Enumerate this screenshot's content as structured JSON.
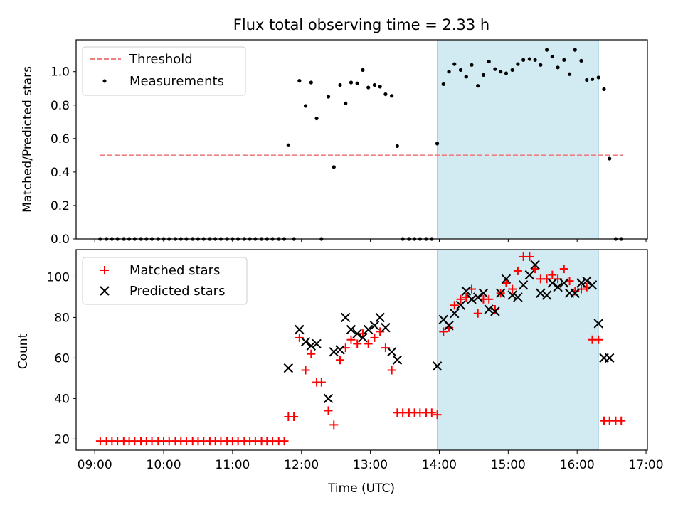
{
  "title": "Flux total observing time = 2.33 h",
  "colors": {
    "threshold": "#f08080",
    "measurements": "#000000",
    "matched": "#ff0000",
    "predicted": "#000000",
    "shade": "#add8e6"
  },
  "chart_data": [
    {
      "type": "scatter",
      "ylabel": "Matched/Predicted stars",
      "ylim": [
        0,
        1.19
      ],
      "yticks": [
        "0.0",
        "0.2",
        "0.4",
        "0.6",
        "0.8",
        "1.0"
      ],
      "xlim": [
        8.73,
        17.02
      ],
      "shaded_range": [
        13.97,
        16.31
      ],
      "legend_position": "upper-left",
      "series": [
        {
          "name": "Threshold",
          "kind": "line-dashed",
          "x": [
            9.08,
            16.67
          ],
          "y": [
            0.5,
            0.5
          ]
        },
        {
          "name": "Measurements",
          "kind": "dot",
          "x": [
            9.08,
            9.17,
            9.25,
            9.33,
            9.42,
            9.5,
            9.58,
            9.67,
            9.75,
            9.83,
            9.92,
            10.0,
            10.08,
            10.17,
            10.25,
            10.33,
            10.42,
            10.5,
            10.58,
            10.67,
            10.75,
            10.83,
            10.92,
            11.0,
            11.08,
            11.17,
            11.25,
            11.33,
            11.42,
            11.5,
            11.58,
            11.67,
            11.75,
            11.81,
            11.89,
            11.97,
            12.06,
            12.14,
            12.22,
            12.29,
            12.39,
            12.47,
            12.56,
            12.64,
            12.72,
            12.81,
            12.89,
            12.97,
            13.06,
            13.14,
            13.22,
            13.31,
            13.39,
            13.47,
            13.56,
            13.64,
            13.72,
            13.81,
            13.89,
            13.97,
            14.06,
            14.14,
            14.22,
            14.31,
            14.39,
            14.47,
            14.56,
            14.64,
            14.72,
            14.81,
            14.89,
            14.97,
            15.06,
            15.14,
            15.22,
            15.31,
            15.39,
            15.47,
            15.56,
            15.64,
            15.72,
            15.81,
            15.89,
            15.97,
            16.06,
            16.14,
            16.22,
            16.31,
            16.39,
            16.47,
            16.56,
            16.64
          ],
          "y": [
            0,
            0,
            0,
            0,
            0,
            0,
            0,
            0,
            0,
            0,
            0,
            0,
            0,
            0,
            0,
            0,
            0,
            0,
            0,
            0,
            0,
            0,
            0,
            0,
            0,
            0,
            0,
            0,
            0,
            0,
            0,
            0,
            0,
            0.56,
            0,
            0.945,
            0.795,
            0.935,
            0.72,
            0,
            0.85,
            0.43,
            0.92,
            0.81,
            0.935,
            0.93,
            1.01,
            0.905,
            0.92,
            0.91,
            0.865,
            0.855,
            0.555,
            0,
            0,
            0,
            0,
            0,
            0,
            0.57,
            0.925,
            1.0,
            1.045,
            1.01,
            0.97,
            1.04,
            0.915,
            0.98,
            1.06,
            1.015,
            1.0,
            0.99,
            1.01,
            1.045,
            1.07,
            1.075,
            1.07,
            1.04,
            1.13,
            1.09,
            1.025,
            1.07,
            0.985,
            1.13,
            1.065,
            0.95,
            0.955,
            0.965,
            0.895,
            0.48,
            0,
            0
          ]
        }
      ]
    },
    {
      "type": "scatter",
      "xlabel": "Time (UTC)",
      "ylabel": "Count",
      "ylim": [
        14.5,
        113.5
      ],
      "yticks": [
        "20",
        "40",
        "60",
        "80",
        "100"
      ],
      "xlim": [
        8.73,
        17.02
      ],
      "xticks": [
        "09:00",
        "10:00",
        "11:00",
        "12:00",
        "13:00",
        "14:00",
        "15:00",
        "16:00",
        "17:00"
      ],
      "shaded_range": [
        13.97,
        16.31
      ],
      "legend_position": "upper-left",
      "series": [
        {
          "name": "Matched stars",
          "kind": "plus",
          "x": [
            9.08,
            9.17,
            9.25,
            9.33,
            9.42,
            9.5,
            9.58,
            9.67,
            9.75,
            9.83,
            9.92,
            10.0,
            10.08,
            10.17,
            10.25,
            10.33,
            10.42,
            10.5,
            10.58,
            10.67,
            10.75,
            10.83,
            10.92,
            11.0,
            11.08,
            11.17,
            11.25,
            11.33,
            11.42,
            11.5,
            11.58,
            11.67,
            11.75,
            11.81,
            11.89,
            11.97,
            12.06,
            12.14,
            12.22,
            12.29,
            12.39,
            12.47,
            12.56,
            12.64,
            12.72,
            12.81,
            12.89,
            12.97,
            13.06,
            13.14,
            13.22,
            13.31,
            13.39,
            13.47,
            13.56,
            13.64,
            13.72,
            13.81,
            13.89,
            13.97,
            14.06,
            14.14,
            14.22,
            14.31,
            14.39,
            14.47,
            14.56,
            14.64,
            14.72,
            14.81,
            14.89,
            14.97,
            15.06,
            15.14,
            15.22,
            15.31,
            15.39,
            15.47,
            15.56,
            15.64,
            15.72,
            15.81,
            15.89,
            15.97,
            16.06,
            16.14,
            16.22,
            16.31,
            16.39,
            16.47,
            16.56,
            16.64
          ],
          "y": [
            19,
            19,
            19,
            19,
            19,
            19,
            19,
            19,
            19,
            19,
            19,
            19,
            19,
            19,
            19,
            19,
            19,
            19,
            19,
            19,
            19,
            19,
            19,
            19,
            19,
            19,
            19,
            19,
            19,
            19,
            19,
            19,
            19,
            31,
            31,
            70,
            54,
            62,
            48,
            48,
            34,
            27,
            59,
            65,
            69,
            67,
            72,
            67,
            70,
            73,
            65,
            54,
            33,
            33,
            33,
            33,
            33,
            33,
            33,
            32,
            73,
            75,
            86,
            89,
            90,
            94,
            82,
            89,
            89,
            84,
            92,
            97,
            94,
            103,
            110,
            110,
            104,
            99,
            99,
            101,
            99,
            104,
            98,
            93,
            94,
            95,
            69,
            69,
            29,
            29,
            29,
            29
          ],
          "y_fix_note": ""
        },
        {
          "name": "Predicted stars",
          "kind": "x",
          "x": [
            11.81,
            11.97,
            12.06,
            12.14,
            12.22,
            12.39,
            12.47,
            12.56,
            12.64,
            12.72,
            12.81,
            12.89,
            12.97,
            13.06,
            13.14,
            13.22,
            13.31,
            13.39,
            13.97,
            14.06,
            14.14,
            14.22,
            14.31,
            14.39,
            14.47,
            14.56,
            14.64,
            14.72,
            14.81,
            14.89,
            14.97,
            15.06,
            15.14,
            15.22,
            15.31,
            15.39,
            15.47,
            15.56,
            15.64,
            15.72,
            15.81,
            15.89,
            15.97,
            16.06,
            16.14,
            16.22,
            16.31,
            16.39,
            16.47
          ],
          "y": [
            55,
            74,
            68,
            66,
            67,
            40,
            63,
            64,
            80,
            74,
            72,
            70,
            74,
            76,
            80,
            75,
            63,
            59,
            56,
            79,
            76,
            82,
            86,
            93,
            89,
            90,
            92,
            84,
            83,
            92,
            99,
            91,
            90,
            96,
            101,
            106,
            92,
            91,
            97,
            95,
            97,
            92,
            92,
            97,
            98,
            96,
            77,
            60,
            60
          ]
        }
      ]
    }
  ]
}
